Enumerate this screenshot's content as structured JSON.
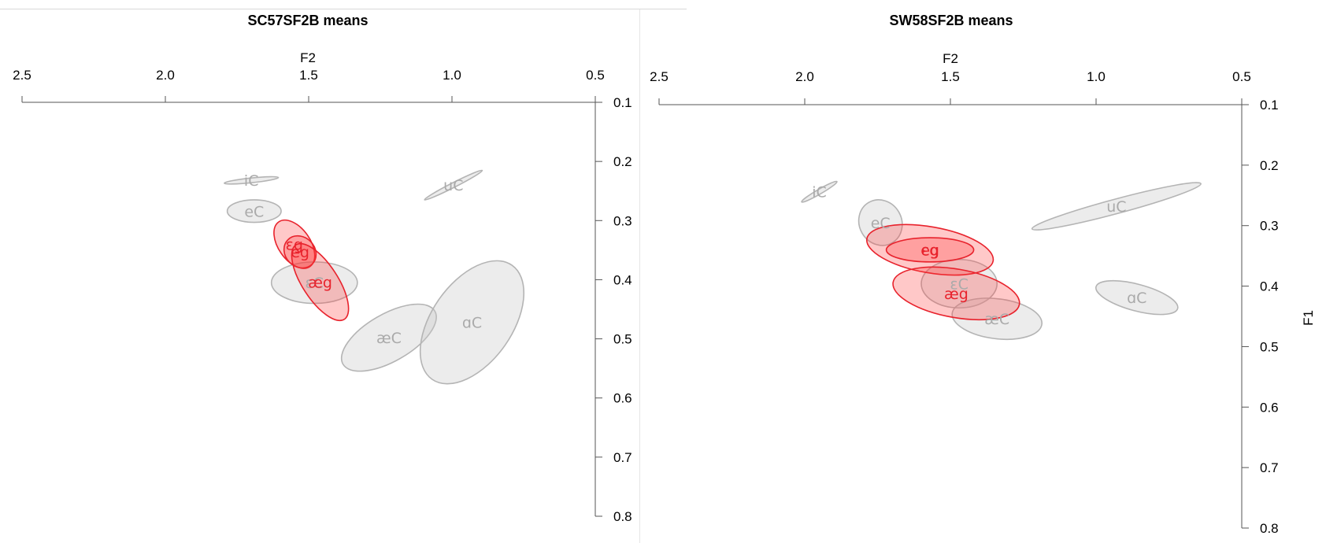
{
  "colors": {
    "consonant_fill": "#c8c8c8",
    "consonant_stroke": "#b4b4b4",
    "consonant_text": "#aaaaaa",
    "g_fill": "#ff3b3b",
    "g_stroke": "#e8222c",
    "g_text": "#e8222c"
  },
  "chart_data": [
    {
      "type": "scatter",
      "title": "SC57SF2B means",
      "xlabel": "F2",
      "ylabel": "",
      "xlim": [
        2.5,
        0.5
      ],
      "ylim": [
        0.1,
        0.8
      ],
      "x_reversed": true,
      "y_reversed": true,
      "xticks": [
        "2.5",
        "2.0",
        "1.5",
        "1.0",
        "0.5"
      ],
      "yticks": [
        "0.1",
        "0.2",
        "0.3",
        "0.4",
        "0.5",
        "0.6",
        "0.7",
        "0.8"
      ],
      "ellipses": [
        {
          "label": "iC",
          "group": "C",
          "x": 1.7,
          "y": 0.232,
          "rx": 0.095,
          "ry": 0.004,
          "angle": -6
        },
        {
          "label": "uC",
          "group": "C",
          "x": 0.995,
          "y": 0.24,
          "rx": 0.113,
          "ry": 0.004,
          "angle": -27
        },
        {
          "label": "eC",
          "group": "C",
          "x": 1.69,
          "y": 0.284,
          "rx": 0.094,
          "ry": 0.019,
          "angle": 0
        },
        {
          "label": "ɛC",
          "group": "C",
          "x": 1.48,
          "y": 0.405,
          "rx": 0.15,
          "ry": 0.035,
          "angle": 0
        },
        {
          "label": "æC",
          "group": "C",
          "x": 1.22,
          "y": 0.498,
          "rx": 0.185,
          "ry": 0.04,
          "angle": -30
        },
        {
          "label": "ɑC",
          "group": "C",
          "x": 0.93,
          "y": 0.472,
          "rx": 0.243,
          "ry": 0.068,
          "angle": -55
        },
        {
          "label": "ɛg",
          "group": "g",
          "x": 1.55,
          "y": 0.34,
          "rx": 0.095,
          "ry": 0.027,
          "angle": 55
        },
        {
          "label": "eg",
          "group": "g",
          "x": 1.53,
          "y": 0.353,
          "rx": 0.06,
          "ry": 0.025,
          "angle": 45
        },
        {
          "label": "æg",
          "group": "g",
          "x": 1.46,
          "y": 0.404,
          "rx": 0.155,
          "ry": 0.03,
          "angle": 57
        }
      ]
    },
    {
      "type": "scatter",
      "title": "SW58SF2B means",
      "xlabel": "F2",
      "ylabel": "F1",
      "xlim": [
        2.5,
        0.5
      ],
      "ylim": [
        0.1,
        0.8
      ],
      "x_reversed": true,
      "y_reversed": true,
      "xticks": [
        "2.5",
        "2.0",
        "1.5",
        "1.0",
        "0.5"
      ],
      "yticks": [
        "0.1",
        "0.2",
        "0.3",
        "0.4",
        "0.5",
        "0.6",
        "0.7",
        "0.8"
      ],
      "ellipses": [
        {
          "label": "iC",
          "group": "C",
          "x": 1.95,
          "y": 0.244,
          "rx": 0.07,
          "ry": 0.004,
          "angle": -30
        },
        {
          "label": "eC",
          "group": "C",
          "x": 1.74,
          "y": 0.295,
          "rx": 0.08,
          "ry": 0.035,
          "angle": 60
        },
        {
          "label": "uC",
          "group": "C",
          "x": 0.93,
          "y": 0.268,
          "rx": 0.3,
          "ry": 0.012,
          "angle": -15
        },
        {
          "label": "ɛC",
          "group": "C",
          "x": 1.47,
          "y": 0.396,
          "rx": 0.13,
          "ry": 0.04,
          "angle": 0
        },
        {
          "label": "æC",
          "group": "C",
          "x": 1.34,
          "y": 0.454,
          "rx": 0.155,
          "ry": 0.033,
          "angle": 7
        },
        {
          "label": "ɑC",
          "group": "C",
          "x": 0.86,
          "y": 0.419,
          "rx": 0.145,
          "ry": 0.022,
          "angle": 15
        },
        {
          "label": "ɛg",
          "group": "g",
          "x": 1.57,
          "y": 0.34,
          "rx": 0.22,
          "ry": 0.038,
          "angle": 10
        },
        {
          "label": "eg",
          "group": "g",
          "x": 1.57,
          "y": 0.34,
          "rx": 0.15,
          "ry": 0.02,
          "angle": 0
        },
        {
          "label": "æg",
          "group": "g",
          "x": 1.48,
          "y": 0.412,
          "rx": 0.22,
          "ry": 0.04,
          "angle": 10
        }
      ]
    }
  ]
}
